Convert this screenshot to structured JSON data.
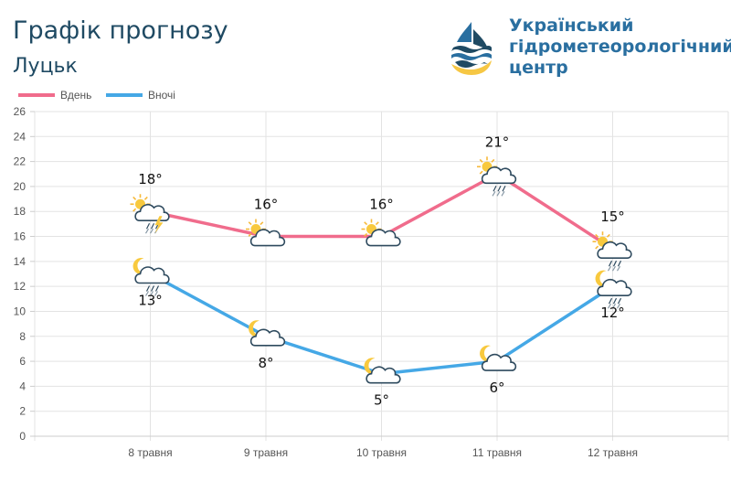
{
  "header": {
    "title": "Графік прогнозу",
    "city": "Луцьк",
    "org_lines": [
      "Український",
      "гідрометеорологічний",
      "центр"
    ]
  },
  "chart_data": {
    "type": "line",
    "categories": [
      "8 травня",
      "9 травня",
      "10 травня",
      "11 травня",
      "12 травня"
    ],
    "series": [
      {
        "name": "Вдень",
        "color": "#f06c8c",
        "values": [
          18,
          16,
          16,
          21,
          15
        ],
        "labels": [
          "18°",
          "16°",
          "16°",
          "21°",
          "15°"
        ],
        "icons": [
          "sun-cloud-rain-lightning-icon",
          "sun-cloud-icon",
          "sun-cloud-icon",
          "sun-cloud-rain-icon",
          "sun-cloud-rain-icon"
        ]
      },
      {
        "name": "Вночі",
        "color": "#45a8e6",
        "values": [
          13,
          8,
          5,
          6,
          12
        ],
        "labels": [
          "13°",
          "8°",
          "5°",
          "6°",
          "12°"
        ],
        "icons": [
          "moon-cloud-rain-icon",
          "moon-cloud-icon",
          "moon-cloud-icon",
          "moon-cloud-icon",
          "moon-cloud-rain-icon"
        ]
      }
    ],
    "yticks": [
      "0",
      "2",
      "4",
      "6",
      "8",
      "10",
      "12",
      "14",
      "16",
      "18",
      "20",
      "22",
      "24",
      "26"
    ],
    "ylim": [
      0,
      26
    ],
    "grid": true,
    "legend": "top-left"
  }
}
